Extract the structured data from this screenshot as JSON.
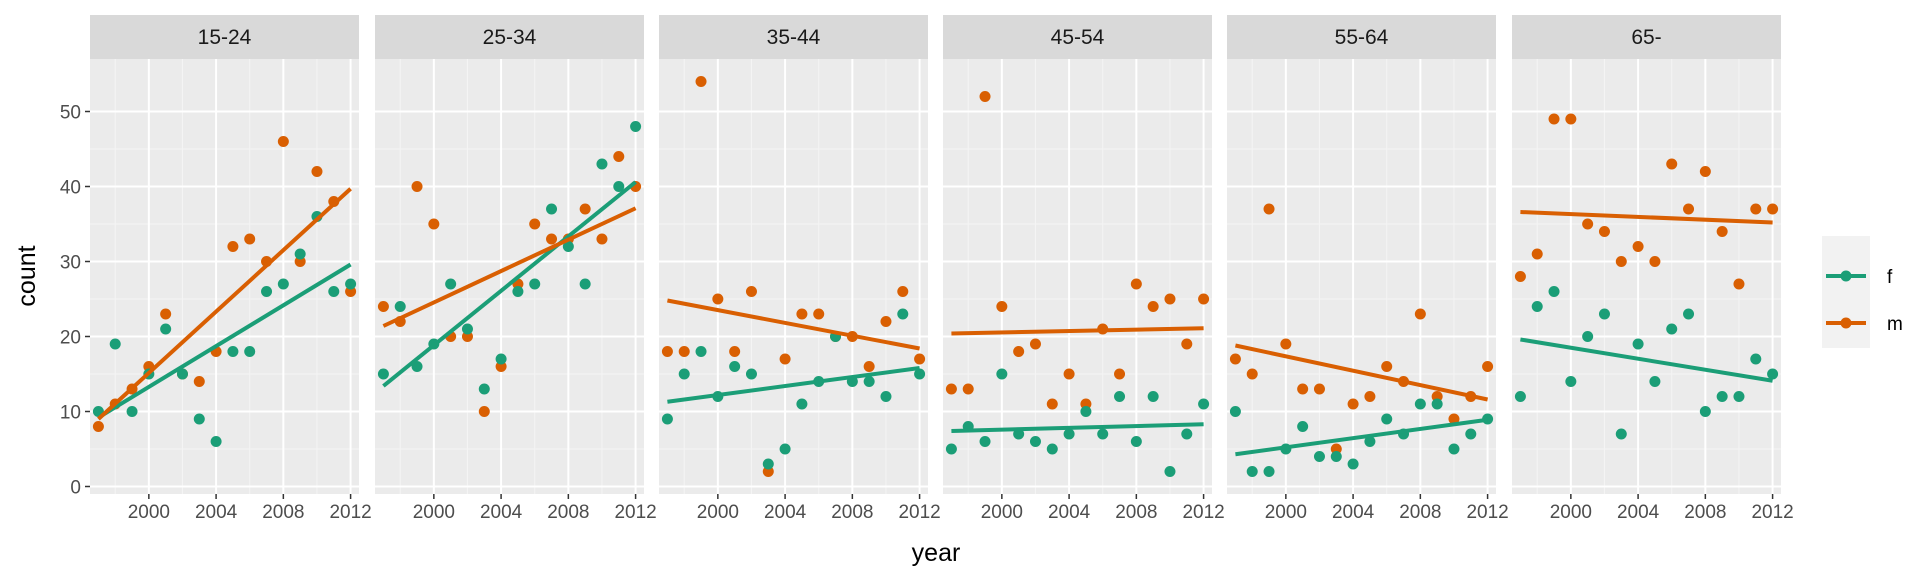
{
  "chart_data": {
    "type": "scatter",
    "xlabel": "year",
    "ylabel": "count",
    "xlim": [
      1996.5,
      2012.5
    ],
    "ylim": [
      -1,
      57
    ],
    "x_ticks": [
      2000,
      2004,
      2008,
      2012
    ],
    "y_ticks": [
      0,
      10,
      20,
      30,
      40,
      50
    ],
    "grid": true,
    "legend_position": "right",
    "series_styles": [
      {
        "key": "f",
        "label": "f",
        "color": "#1B9E77"
      },
      {
        "key": "m",
        "label": "m",
        "color": "#D95F02"
      }
    ],
    "panels": [
      {
        "label": "15-24",
        "f": [
          [
            1997,
            10
          ],
          [
            1998,
            19
          ],
          [
            1999,
            10
          ],
          [
            2000,
            15
          ],
          [
            2001,
            21
          ],
          [
            2002,
            15
          ],
          [
            2003,
            9
          ],
          [
            2004,
            6
          ],
          [
            2005,
            18
          ],
          [
            2006,
            18
          ],
          [
            2007,
            26
          ],
          [
            2008,
            27
          ],
          [
            2009,
            31
          ],
          [
            2010,
            36
          ],
          [
            2011,
            26
          ],
          [
            2012,
            27
          ]
        ],
        "m": [
          [
            1997,
            8
          ],
          [
            1998,
            11
          ],
          [
            1999,
            13
          ],
          [
            2000,
            16
          ],
          [
            2001,
            23
          ],
          [
            2002,
            15
          ],
          [
            2003,
            14
          ],
          [
            2004,
            18
          ],
          [
            2005,
            32
          ],
          [
            2006,
            33
          ],
          [
            2007,
            30
          ],
          [
            2008,
            46
          ],
          [
            2009,
            30
          ],
          [
            2010,
            42
          ],
          [
            2011,
            38
          ],
          [
            2012,
            26
          ]
        ],
        "fit_f": [
          [
            1997,
            9.2
          ],
          [
            2012,
            29.6
          ]
        ],
        "fit_m": [
          [
            1997,
            9.0
          ],
          [
            2012,
            39.7
          ]
        ]
      },
      {
        "label": "25-34",
        "f": [
          [
            1997,
            15
          ],
          [
            1998,
            24
          ],
          [
            1999,
            16
          ],
          [
            2000,
            19
          ],
          [
            2001,
            27
          ],
          [
            2002,
            21
          ],
          [
            2003,
            13
          ],
          [
            2004,
            17
          ],
          [
            2005,
            26
          ],
          [
            2006,
            27
          ],
          [
            2007,
            37
          ],
          [
            2008,
            32
          ],
          [
            2009,
            27
          ],
          [
            2010,
            43
          ],
          [
            2011,
            40
          ],
          [
            2012,
            48
          ]
        ],
        "m": [
          [
            1997,
            24
          ],
          [
            1998,
            22
          ],
          [
            1999,
            40
          ],
          [
            2000,
            35
          ],
          [
            2001,
            20
          ],
          [
            2002,
            20
          ],
          [
            2003,
            10
          ],
          [
            2004,
            16
          ],
          [
            2005,
            27
          ],
          [
            2006,
            35
          ],
          [
            2007,
            33
          ],
          [
            2008,
            33
          ],
          [
            2009,
            37
          ],
          [
            2010,
            33
          ],
          [
            2011,
            44
          ],
          [
            2012,
            40
          ]
        ],
        "fit_f": [
          [
            1997,
            13.4
          ],
          [
            2012,
            40.6
          ]
        ],
        "fit_m": [
          [
            1997,
            21.4
          ],
          [
            2012,
            37.1
          ]
        ]
      },
      {
        "label": "35-44",
        "f": [
          [
            1997,
            9
          ],
          [
            1998,
            15
          ],
          [
            1999,
            18
          ],
          [
            2000,
            12
          ],
          [
            2001,
            16
          ],
          [
            2002,
            15
          ],
          [
            2003,
            3
          ],
          [
            2004,
            5
          ],
          [
            2005,
            11
          ],
          [
            2006,
            14
          ],
          [
            2007,
            20
          ],
          [
            2008,
            14
          ],
          [
            2009,
            14
          ],
          [
            2010,
            12
          ],
          [
            2011,
            23
          ],
          [
            2012,
            15
          ]
        ],
        "m": [
          [
            1997,
            18
          ],
          [
            1998,
            18
          ],
          [
            1999,
            54
          ],
          [
            2000,
            25
          ],
          [
            2001,
            18
          ],
          [
            2002,
            26
          ],
          [
            2003,
            2
          ],
          [
            2004,
            17
          ],
          [
            2005,
            23
          ],
          [
            2006,
            23
          ],
          [
            2007,
            20
          ],
          [
            2008,
            20
          ],
          [
            2009,
            16
          ],
          [
            2010,
            22
          ],
          [
            2011,
            26
          ],
          [
            2012,
            17
          ]
        ],
        "fit_f": [
          [
            1997,
            11.3
          ],
          [
            2012,
            15.8
          ]
        ],
        "fit_m": [
          [
            1997,
            24.8
          ],
          [
            2012,
            18.4
          ]
        ]
      },
      {
        "label": "45-54",
        "f": [
          [
            1997,
            5
          ],
          [
            1998,
            8
          ],
          [
            1999,
            6
          ],
          [
            2000,
            15
          ],
          [
            2001,
            7
          ],
          [
            2002,
            6
          ],
          [
            2003,
            5
          ],
          [
            2004,
            7
          ],
          [
            2005,
            10
          ],
          [
            2006,
            7
          ],
          [
            2007,
            12
          ],
          [
            2008,
            6
          ],
          [
            2009,
            12
          ],
          [
            2010,
            2
          ],
          [
            2011,
            7
          ],
          [
            2012,
            11
          ]
        ],
        "m": [
          [
            1997,
            13
          ],
          [
            1998,
            13
          ],
          [
            1999,
            52
          ],
          [
            2000,
            24
          ],
          [
            2001,
            18
          ],
          [
            2002,
            19
          ],
          [
            2003,
            11
          ],
          [
            2004,
            15
          ],
          [
            2005,
            11
          ],
          [
            2006,
            21
          ],
          [
            2007,
            15
          ],
          [
            2008,
            27
          ],
          [
            2009,
            24
          ],
          [
            2010,
            25
          ],
          [
            2011,
            19
          ],
          [
            2012,
            25
          ]
        ],
        "fit_f": [
          [
            1997,
            7.4
          ],
          [
            2012,
            8.3
          ]
        ],
        "fit_m": [
          [
            1997,
            20.4
          ],
          [
            2012,
            21.1
          ]
        ]
      },
      {
        "label": "55-64",
        "f": [
          [
            1997,
            10
          ],
          [
            1998,
            2
          ],
          [
            1999,
            2
          ],
          [
            2000,
            5
          ],
          [
            2001,
            8
          ],
          [
            2002,
            4
          ],
          [
            2003,
            4
          ],
          [
            2004,
            3
          ],
          [
            2005,
            6
          ],
          [
            2006,
            9
          ],
          [
            2007,
            7
          ],
          [
            2008,
            11
          ],
          [
            2009,
            11
          ],
          [
            2010,
            5
          ],
          [
            2011,
            7
          ],
          [
            2012,
            9
          ]
        ],
        "m": [
          [
            1997,
            17
          ],
          [
            1998,
            15
          ],
          [
            1999,
            37
          ],
          [
            2000,
            19
          ],
          [
            2001,
            13
          ],
          [
            2002,
            13
          ],
          [
            2003,
            5
          ],
          [
            2004,
            11
          ],
          [
            2005,
            12
          ],
          [
            2006,
            16
          ],
          [
            2007,
            14
          ],
          [
            2008,
            23
          ],
          [
            2009,
            12
          ],
          [
            2010,
            9
          ],
          [
            2011,
            12
          ],
          [
            2012,
            16
          ]
        ],
        "fit_f": [
          [
            1997,
            4.3
          ],
          [
            2012,
            8.9
          ]
        ],
        "fit_m": [
          [
            1997,
            18.8
          ],
          [
            2012,
            11.6
          ]
        ]
      },
      {
        "label": "65-",
        "f": [
          [
            1997,
            12
          ],
          [
            1998,
            24
          ],
          [
            1999,
            26
          ],
          [
            2000,
            14
          ],
          [
            2001,
            20
          ],
          [
            2002,
            23
          ],
          [
            2003,
            7
          ],
          [
            2004,
            19
          ],
          [
            2005,
            14
          ],
          [
            2006,
            21
          ],
          [
            2007,
            23
          ],
          [
            2008,
            10
          ],
          [
            2009,
            12
          ],
          [
            2010,
            12
          ],
          [
            2011,
            17
          ],
          [
            2012,
            15
          ]
        ],
        "m": [
          [
            1997,
            28
          ],
          [
            1998,
            31
          ],
          [
            1999,
            49
          ],
          [
            2000,
            49
          ],
          [
            2001,
            35
          ],
          [
            2002,
            34
          ],
          [
            2003,
            30
          ],
          [
            2004,
            32
          ],
          [
            2005,
            30
          ],
          [
            2006,
            43
          ],
          [
            2007,
            37
          ],
          [
            2008,
            42
          ],
          [
            2009,
            34
          ],
          [
            2010,
            27
          ],
          [
            2011,
            37
          ],
          [
            2012,
            37
          ]
        ],
        "fit_f": [
          [
            1997,
            19.6
          ],
          [
            2012,
            14.1
          ]
        ],
        "fit_m": [
          [
            1997,
            36.6
          ],
          [
            2012,
            35.2
          ]
        ]
      }
    ]
  }
}
